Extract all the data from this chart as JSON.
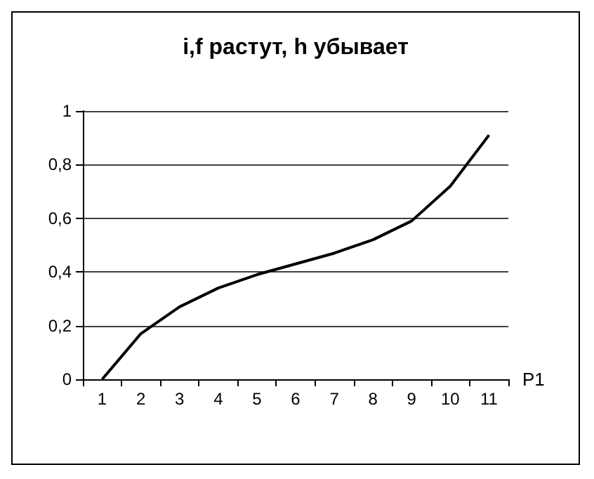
{
  "chart_data": {
    "type": "line",
    "title": "i,f растут, h убывает",
    "xlabel": "P1",
    "categories": [
      "1",
      "2",
      "3",
      "4",
      "5",
      "6",
      "7",
      "8",
      "9",
      "10",
      "11"
    ],
    "series": [
      {
        "color": "#000000",
        "values": [
          0,
          0.17,
          0.27,
          0.34,
          0.39,
          0.43,
          0.47,
          0.52,
          0.59,
          0.72,
          0.91
        ]
      }
    ],
    "ylim": [
      0,
      1
    ],
    "yticks": [
      0,
      {
        "value": 0.2,
        "label": "0,2"
      },
      {
        "value": 0.4,
        "label": "0,4"
      },
      {
        "value": 0.6,
        "label": "0,6"
      },
      {
        "value": 0.8,
        "label": "0,8"
      },
      1
    ],
    "grid": "y",
    "marker": "none",
    "line_style": "solid"
  }
}
